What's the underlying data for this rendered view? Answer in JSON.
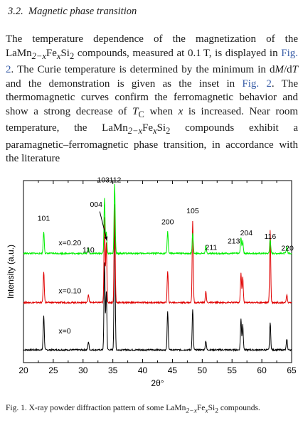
{
  "section": {
    "number": "3.2.",
    "title": "Magnetic phase transition"
  },
  "paragraph": {
    "t1": "The temperature dependence of the magnetization of the LaMn",
    "sub1": "2−x",
    "t2": "Fe",
    "sub2": "x",
    "t3": "Si",
    "sub3": "2",
    "t4": " compounds, measured at 0.1 T, is displayed in ",
    "ref1": "Fig. 2",
    "t5": ". The Curie temperature is determined by the minimum in d",
    "m": "M",
    "slash": "/d",
    "tt": "T",
    "t6": " and the demonstration is given as the inset in ",
    "ref2": "Fig. 2",
    "t7": ". The thermomagnetic curves confirm the ferromagnetic behavior and show a strong decrease of ",
    "tc": "T",
    "tcsub": "C",
    "t8": " when ",
    "xv": "x",
    "t9": " is increased. Near room temperature, the LaMn",
    "sub4": "2−x",
    "t10": "Fe",
    "sub5": "x",
    "t11": "Si",
    "sub6": "2",
    "t12": " compounds exhibit a paramagnetic–ferromagnetic phase transition, in accordance with the literature"
  },
  "caption": {
    "prefix": "Fig. 1. X-ray powder diffraction pattern of some LaMn",
    "sub1": "2−x",
    "mid": "Fe",
    "sub2": "x",
    "mid2": "Si",
    "sub3": "2",
    "suffix": " compounds."
  },
  "chart_data": {
    "type": "line",
    "xlabel": "2θ°",
    "ylabel": "Intensity (a.u.)",
    "xlim": [
      20,
      65
    ],
    "xticks": [
      20,
      25,
      30,
      35,
      40,
      45,
      50,
      55,
      60,
      65
    ],
    "series": [
      {
        "name": "x=0",
        "color": "#000000",
        "baseline": 0.07,
        "peaks": [
          [
            23.4,
            0.19
          ],
          [
            30.9,
            0.045
          ],
          [
            33.6,
            0.48
          ],
          [
            33.9,
            0.32
          ],
          [
            35.3,
            0.78
          ],
          [
            44.2,
            0.21
          ],
          [
            48.4,
            0.22
          ],
          [
            50.6,
            0.05
          ],
          [
            56.5,
            0.17
          ],
          [
            56.8,
            0.14
          ],
          [
            61.4,
            0.15
          ],
          [
            64.2,
            0.06
          ]
        ]
      },
      {
        "name": "x=0.10",
        "color": "#e00000",
        "baseline": 0.33,
        "peaks": [
          [
            23.4,
            0.17
          ],
          [
            30.9,
            0.045
          ],
          [
            33.6,
            0.47
          ],
          [
            33.9,
            0.33
          ],
          [
            35.3,
            0.54
          ],
          [
            44.2,
            0.17
          ],
          [
            48.4,
            0.45
          ],
          [
            50.6,
            0.06
          ],
          [
            56.5,
            0.16
          ],
          [
            56.8,
            0.14
          ],
          [
            61.4,
            0.4
          ],
          [
            64.2,
            0.04
          ]
        ]
      },
      {
        "name": "x=0.20",
        "color": "#00ee00",
        "baseline": 0.6,
        "peaks": [
          [
            23.4,
            0.12
          ],
          [
            30.9,
            0.03
          ],
          [
            33.6,
            0.3
          ],
          [
            33.9,
            0.12
          ],
          [
            35.3,
            0.38
          ],
          [
            44.2,
            0.12
          ],
          [
            48.4,
            0.11
          ],
          [
            50.6,
            0.04
          ],
          [
            56.5,
            0.09
          ],
          [
            56.8,
            0.07
          ],
          [
            61.4,
            0.08
          ],
          [
            64.2,
            0.04
          ]
        ]
      }
    ],
    "peak_labels": [
      {
        "text": "101",
        "x": 23.4,
        "y": 0.78
      },
      {
        "text": "110",
        "x": 30.9,
        "y": 0.605
      },
      {
        "text": "004",
        "x": 32.2,
        "y": 0.855
      },
      {
        "text": "103",
        "x": 33.4,
        "y": 0.99
      },
      {
        "text": "112",
        "x": 35.4,
        "y": 0.99
      },
      {
        "text": "200",
        "x": 44.2,
        "y": 0.76
      },
      {
        "text": "105",
        "x": 48.4,
        "y": 0.82
      },
      {
        "text": "211",
        "x": 51.5,
        "y": 0.62
      },
      {
        "text": "213",
        "x": 55.3,
        "y": 0.655
      },
      {
        "text": "204",
        "x": 57.4,
        "y": 0.7
      },
      {
        "text": "116",
        "x": 61.4,
        "y": 0.68
      },
      {
        "text": "220",
        "x": 64.3,
        "y": 0.615
      }
    ],
    "arrow": {
      "from": [
        32.8,
        0.83
      ],
      "to": [
        34.0,
        0.67
      ]
    },
    "sample_labels": [
      {
        "text": "x=0.20",
        "x": 25.9,
        "y": 0.645
      },
      {
        "text": "x=0.10",
        "x": 25.9,
        "y": 0.38
      },
      {
        "text": "x=0",
        "x": 25.9,
        "y": 0.16
      }
    ]
  }
}
